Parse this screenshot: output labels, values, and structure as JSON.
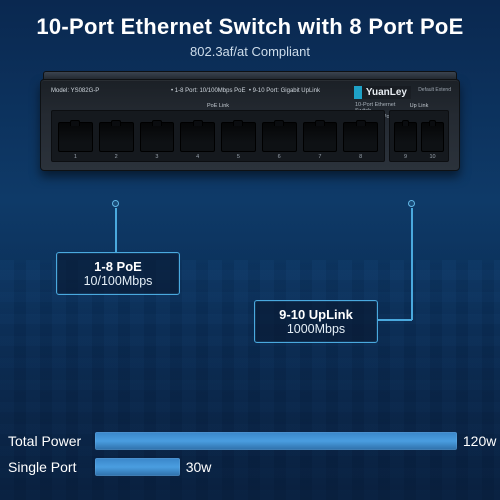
{
  "header": {
    "title": "10-Port Ethernet Switch with 8 Port PoE",
    "subtitle": "802.3af/at Compliant"
  },
  "device": {
    "model_label": "Model: YS082G-P",
    "port_desc_line1": "• 1-8 Port: 10/100Mbps PoE",
    "port_desc_line2": "• 9-10 Port: Gigabit UpLink",
    "brand": "YuanLey",
    "face_title_line1": "10-Port Ethernet Switch",
    "face_title_line2": "with 8-Port PoE",
    "extend_label": "Default  Extend",
    "poe_group_label": "PoE Link",
    "uplink_group_label": "Up Link",
    "poe_ports": [
      "1",
      "2",
      "3",
      "4",
      "5",
      "6",
      "7",
      "8"
    ],
    "uplink_ports": [
      "9",
      "10"
    ]
  },
  "callouts": {
    "poe": {
      "line1": "1-8 PoE",
      "line2": "10/100Mbps"
    },
    "uplink": {
      "line1": "9-10 UpLink",
      "line2": "1000Mbps"
    }
  },
  "power": {
    "total_label": "Total Power",
    "total_value": "120w",
    "total_width_pct": 94,
    "single_label": "Single Port",
    "single_value": "30w",
    "single_width_pct": 22,
    "bar_color": "#4a9ee0"
  },
  "colors": {
    "accent": "#4aa9de",
    "bg_top": "#0a2850",
    "bg_bottom": "#081f3d"
  }
}
